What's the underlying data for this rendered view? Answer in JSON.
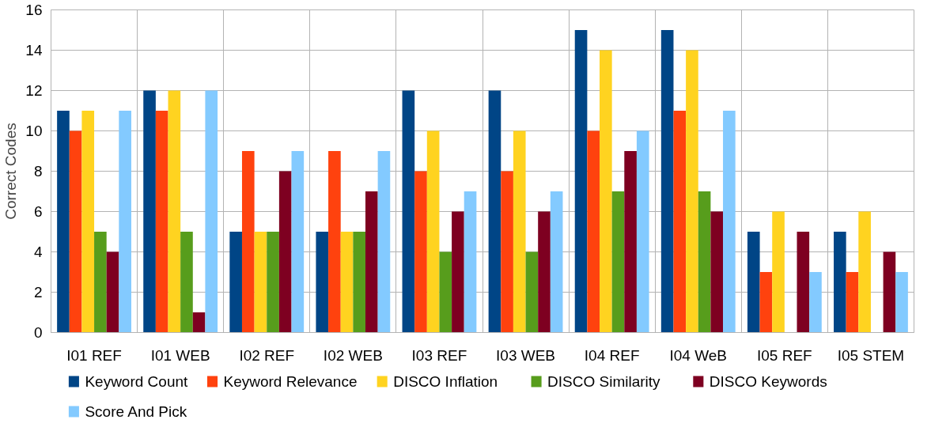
{
  "chart_data": {
    "type": "bar",
    "ylabel": "Correct Codes",
    "categories": [
      "I01 REF",
      "I01 WEB",
      "I02 REF",
      "I02 WEB",
      "I03 REF",
      "I03 WEB",
      "I04 REF",
      "I04 WeB",
      "I05 REF",
      "I05 STEM"
    ],
    "series": [
      {
        "name": "Keyword Count",
        "color": "#004586",
        "values": [
          11,
          12,
          5,
          5,
          12,
          12,
          15,
          15,
          5,
          5
        ]
      },
      {
        "name": "Keyword Relevance",
        "color": "#ff420e",
        "values": [
          10,
          11,
          9,
          9,
          8,
          8,
          10,
          11,
          3,
          3
        ]
      },
      {
        "name": "DISCO Inflation",
        "color": "#ffd320",
        "values": [
          11,
          12,
          5,
          5,
          10,
          10,
          14,
          14,
          6,
          6
        ]
      },
      {
        "name": "DISCO Similarity",
        "color": "#579d1c",
        "values": [
          5,
          5,
          5,
          5,
          4,
          4,
          7,
          7,
          0,
          0
        ]
      },
      {
        "name": "DISCO Keywords",
        "color": "#7e0021",
        "values": [
          4,
          1,
          8,
          7,
          6,
          6,
          9,
          6,
          5,
          4
        ]
      },
      {
        "name": "Score And Pick",
        "color": "#83caff",
        "values": [
          11,
          12,
          9,
          9,
          7,
          7,
          10,
          11,
          3,
          3
        ]
      }
    ],
    "ylim": [
      0,
      16
    ],
    "yticks": [
      0,
      2,
      4,
      6,
      8,
      10,
      12,
      14,
      16
    ],
    "grid": true,
    "legend": "bottom"
  }
}
